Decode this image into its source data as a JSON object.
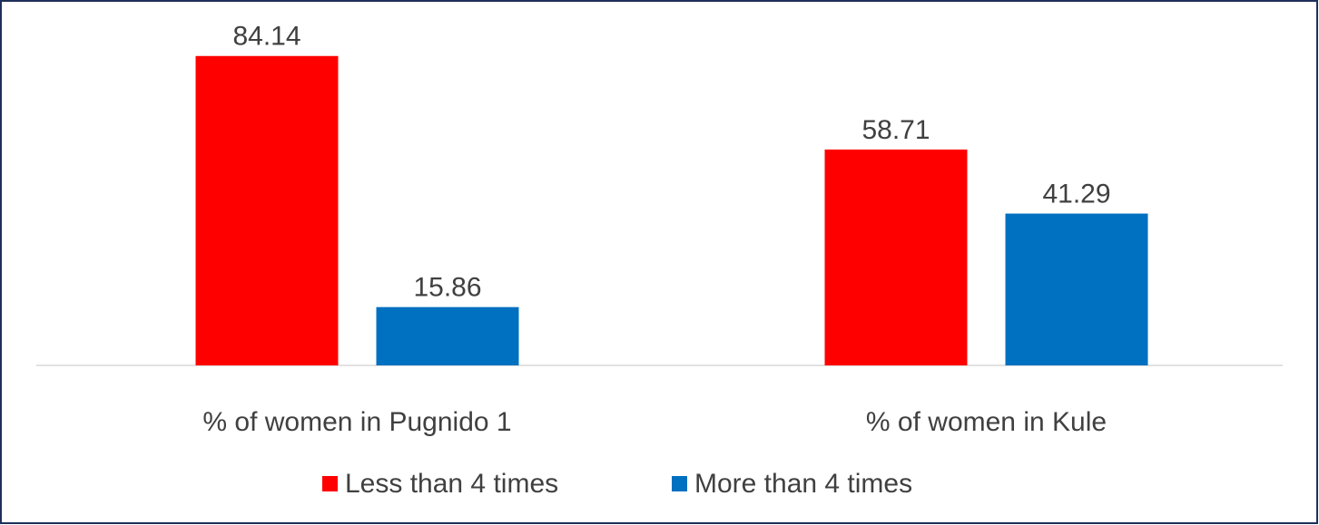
{
  "chart_data": {
    "type": "bar",
    "categories": [
      "% of women in Pugnido 1",
      "% of women in Kule"
    ],
    "series": [
      {
        "name": "Less than 4 times",
        "color": "#ff0000",
        "values": [
          84.14,
          58.71
        ]
      },
      {
        "name": "More than 4 times",
        "color": "#0070c0",
        "values": [
          15.86,
          41.29
        ]
      }
    ],
    "ylim": [
      0,
      90
    ],
    "legend": "bottom"
  }
}
